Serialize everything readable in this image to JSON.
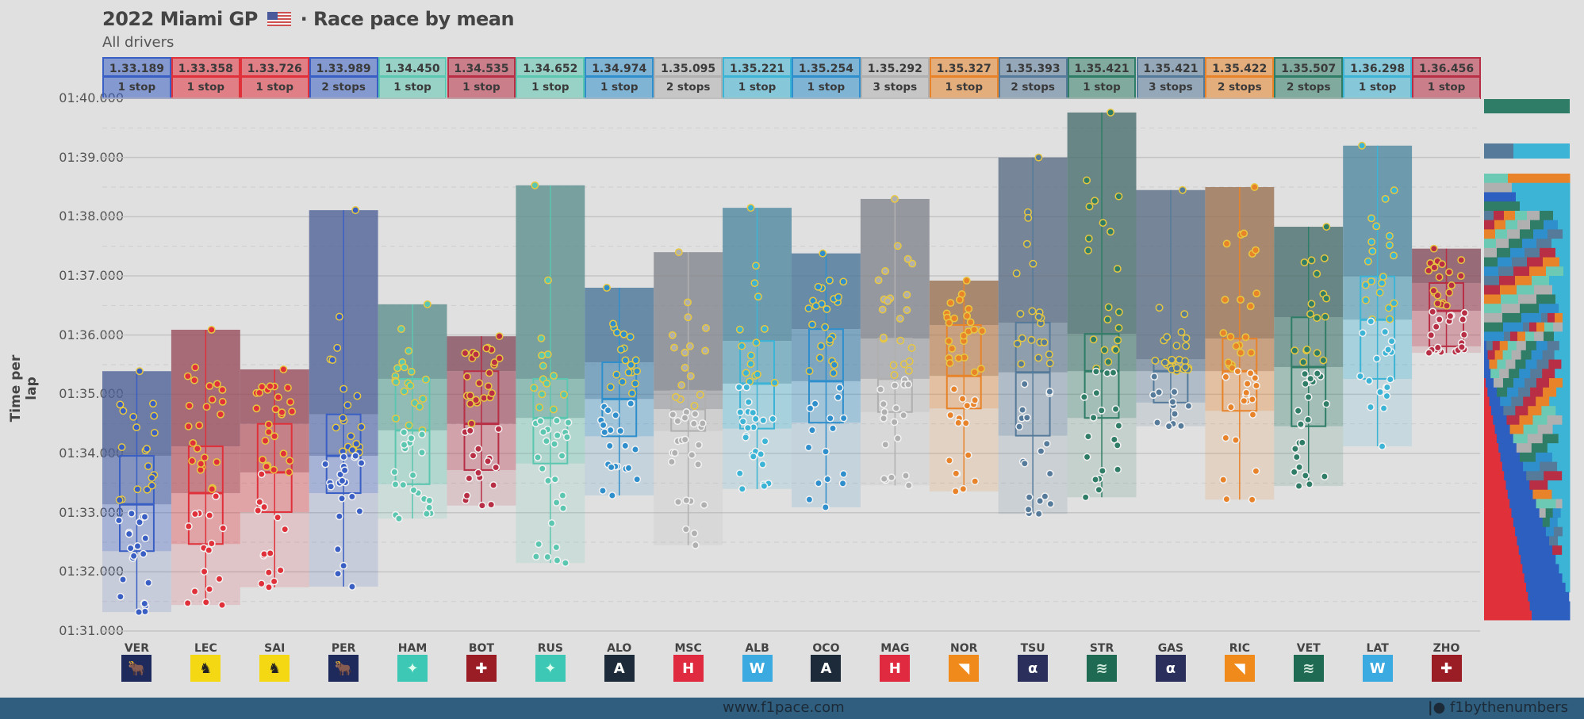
{
  "header": {
    "title_pre": "2022 Miami GP",
    "title_post": "· Race pace by mean",
    "subtitle": "All drivers"
  },
  "footer": {
    "url": "www.f1pace.com",
    "brand": "f1bythenumbers"
  },
  "chart_data": {
    "type": "box",
    "title": "2022 Miami GP - Race pace by mean",
    "subtitle": "All drivers",
    "ylabel": "Time per lap",
    "xlabel": "",
    "ylim_seconds": [
      91,
      100
    ],
    "yticks": [
      "01:31.000",
      "01:32.000",
      "01:33.000",
      "01:34.000",
      "01:35.000",
      "01:36.000",
      "01:37.000",
      "01:38.000",
      "01:39.000",
      "01:40.000"
    ],
    "ytick_values": [
      91,
      92,
      93,
      94,
      95,
      96,
      97,
      98,
      99,
      100
    ],
    "grid": true,
    "drivers": [
      {
        "code": "VER",
        "team": "Red Bull",
        "mean": "1.33.189",
        "stops": "1 stop",
        "color": "#3a5fc4",
        "logo": "red-bull",
        "max": 95.39,
        "q3": 93.96,
        "median": 93.14,
        "q1": 92.35,
        "min": 91.32
      },
      {
        "code": "LEC",
        "team": "Ferrari",
        "mean": "1.33.358",
        "stops": "1 stop",
        "color": "#e0303a",
        "logo": "ferrari",
        "max": 96.09,
        "q3": 94.12,
        "median": 93.33,
        "q1": 92.47,
        "min": 91.44
      },
      {
        "code": "SAI",
        "team": "Ferrari",
        "mean": "1.33.726",
        "stops": "1 stop",
        "color": "#e0303a",
        "logo": "ferrari",
        "max": 95.42,
        "q3": 94.5,
        "median": 93.68,
        "q1": 93.01,
        "min": 91.74
      },
      {
        "code": "PER",
        "team": "Red Bull",
        "mean": "1.33.989",
        "stops": "2 stops",
        "color": "#3a5fc4",
        "logo": "red-bull",
        "max": 98.11,
        "q3": 94.66,
        "median": 93.96,
        "q1": 93.33,
        "min": 91.75
      },
      {
        "code": "HAM",
        "team": "Mercedes",
        "mean": "1.34.450",
        "stops": "1 stop",
        "color": "#5cc7b0",
        "logo": "mercedes",
        "max": 96.52,
        "q3": 95.26,
        "median": 94.39,
        "q1": 93.48,
        "min": 92.9
      },
      {
        "code": "BOT",
        "team": "Alfa Romeo",
        "mean": "1.34.535",
        "stops": "1 stop",
        "color": "#b82e44",
        "logo": "alfa-romeo",
        "max": 95.98,
        "q3": 95.39,
        "median": 94.5,
        "q1": 93.72,
        "min": 93.12
      },
      {
        "code": "RUS",
        "team": "Mercedes",
        "mean": "1.34.652",
        "stops": "1 stop",
        "color": "#5cc7b0",
        "logo": "mercedes",
        "max": 98.53,
        "q3": 95.26,
        "median": 94.6,
        "q1": 93.83,
        "min": 92.15
      },
      {
        "code": "ALO",
        "team": "Alpine",
        "mean": "1.34.974",
        "stops": "1 stop",
        "color": "#2f8fcc",
        "logo": "alpine",
        "max": 96.8,
        "q3": 95.54,
        "median": 94.92,
        "q1": 94.29,
        "min": 93.29
      },
      {
        "code": "MSC",
        "team": "Haas",
        "mean": "1.35.095",
        "stops": "2 stops",
        "color": "#b0b0b0",
        "logo": "haas",
        "max": 97.4,
        "q3": 95.06,
        "median": 94.75,
        "q1": 94.38,
        "min": 92.45
      },
      {
        "code": "ALB",
        "team": "Williams",
        "mean": "1.35.221",
        "stops": "1 stop",
        "color": "#3cb4d6",
        "logo": "williams",
        "max": 98.15,
        "q3": 95.9,
        "median": 95.18,
        "q1": 94.42,
        "min": 93.4
      },
      {
        "code": "OCO",
        "team": "Alpine",
        "mean": "1.35.254",
        "stops": "1 stop",
        "color": "#2f8fcc",
        "logo": "alpine",
        "max": 97.38,
        "q3": 96.1,
        "median": 95.22,
        "q1": 94.52,
        "min": 93.09
      },
      {
        "code": "MAG",
        "team": "Haas",
        "mean": "1.35.292",
        "stops": "3 stops",
        "color": "#b0b0b0",
        "logo": "haas",
        "max": 98.3,
        "q3": 95.94,
        "median": 95.26,
        "q1": 94.7,
        "min": 93.46
      },
      {
        "code": "NOR",
        "team": "McLaren",
        "mean": "1.35.327",
        "stops": "1 stop",
        "color": "#e8832a",
        "logo": "mclaren",
        "max": 96.92,
        "q3": 96.17,
        "median": 95.31,
        "q1": 94.76,
        "min": 93.36
      },
      {
        "code": "TSU",
        "team": "AlphaTauri",
        "mean": "1.35.393",
        "stops": "2 stops",
        "color": "#557a9a",
        "logo": "alphatauri",
        "max": 99.0,
        "q3": 96.21,
        "median": 95.37,
        "q1": 94.3,
        "min": 92.98
      },
      {
        "code": "STR",
        "team": "Aston Martin",
        "mean": "1.35.421",
        "stops": "1 stop",
        "color": "#2f7d66",
        "logo": "aston-martin",
        "max": 99.76,
        "q3": 96.02,
        "median": 95.39,
        "q1": 94.6,
        "min": 93.26
      },
      {
        "code": "GAS",
        "team": "AlphaTauri",
        "mean": "1.35.421",
        "stops": "3 stops",
        "color": "#557a9a",
        "logo": "alphatauri",
        "max": 98.45,
        "q3": 95.59,
        "median": 95.39,
        "q1": 94.86,
        "min": 94.46
      },
      {
        "code": "RIC",
        "team": "McLaren",
        "mean": "1.35.422",
        "stops": "2 stops",
        "color": "#e8832a",
        "logo": "mclaren",
        "max": 98.5,
        "q3": 95.94,
        "median": 95.39,
        "q1": 94.72,
        "min": 93.22
      },
      {
        "code": "VET",
        "team": "Aston Martin",
        "mean": "1.35.507",
        "stops": "2 stops",
        "color": "#2f7d66",
        "logo": "aston-martin",
        "max": 97.83,
        "q3": 96.3,
        "median": 95.46,
        "q1": 94.46,
        "min": 93.45
      },
      {
        "code": "LAT",
        "team": "Williams",
        "mean": "1.36.298",
        "stops": "1 stop",
        "color": "#3cb4d6",
        "logo": "williams",
        "max": 99.2,
        "q3": 96.99,
        "median": 96.26,
        "q1": 95.26,
        "min": 94.12
      },
      {
        "code": "ZHO",
        "team": "Alfa Romeo",
        "mean": "1.36.456",
        "stops": "1 stop",
        "color": "#b82e44",
        "logo": "alfa-romeo",
        "max": 97.46,
        "q3": 96.88,
        "median": 96.41,
        "q1": 95.81,
        "min": 95.7
      }
    ],
    "position_chart": {
      "type": "stacked-position",
      "description": "Lap-by-lap position distribution strip (right side)",
      "colors_legend": [
        "#e0303a",
        "#2c5fbf",
        "#6ccab4",
        "#b82e44",
        "#2f8fcc",
        "#b0b0b0",
        "#e8832a",
        "#557a9a",
        "#2f7d66",
        "#3cb4d6"
      ]
    }
  }
}
